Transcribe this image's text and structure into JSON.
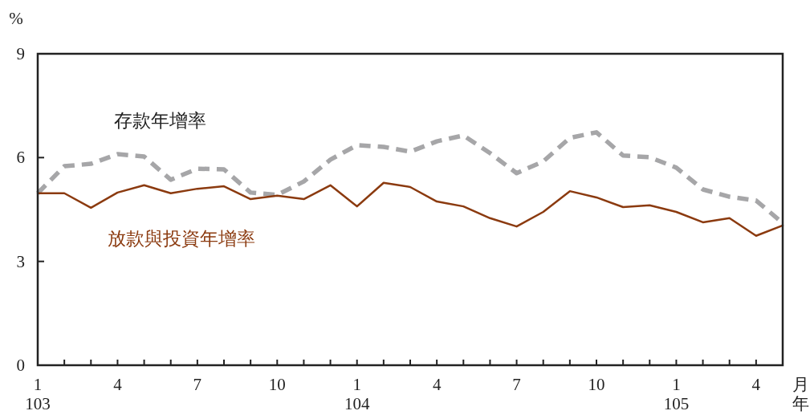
{
  "chart_data": {
    "type": "line",
    "ylabel": "%",
    "xlabel": "月年",
    "categories": [
      "1\n103",
      null,
      null,
      "4",
      null,
      null,
      "7",
      null,
      null,
      "10",
      null,
      null,
      "1\n104",
      null,
      null,
      "4",
      null,
      null,
      "7",
      null,
      null,
      "10",
      null,
      null,
      "1\n105",
      null,
      null,
      "4",
      null
    ],
    "series": [
      {
        "name": "存款年增率",
        "color": "#a6a6a8",
        "line_style": "dashed",
        "values": [
          4.97,
          5.75,
          5.82,
          6.1,
          6.03,
          5.36,
          5.68,
          5.66,
          4.99,
          4.92,
          5.31,
          5.94,
          6.36,
          6.31,
          6.17,
          6.47,
          6.64,
          6.13,
          5.55,
          5.89,
          6.57,
          6.73,
          6.06,
          6.01,
          5.71,
          5.08,
          4.87,
          4.76,
          4.11
        ]
      },
      {
        "name": "放款與投資年增率",
        "color": "#8b3a0f",
        "line_style": "solid",
        "values": [
          4.97,
          4.97,
          4.55,
          4.99,
          5.2,
          4.97,
          5.1,
          5.17,
          4.8,
          4.9,
          4.8,
          5.2,
          4.59,
          5.27,
          5.15,
          4.73,
          4.59,
          4.25,
          4.01,
          4.43,
          5.03,
          4.85,
          4.57,
          4.62,
          4.43,
          4.13,
          4.25,
          3.74,
          4.04
        ]
      }
    ],
    "ylim": [
      0,
      9
    ],
    "yticks": [
      0,
      3,
      6,
      9
    ],
    "grid": false,
    "legend": false
  }
}
